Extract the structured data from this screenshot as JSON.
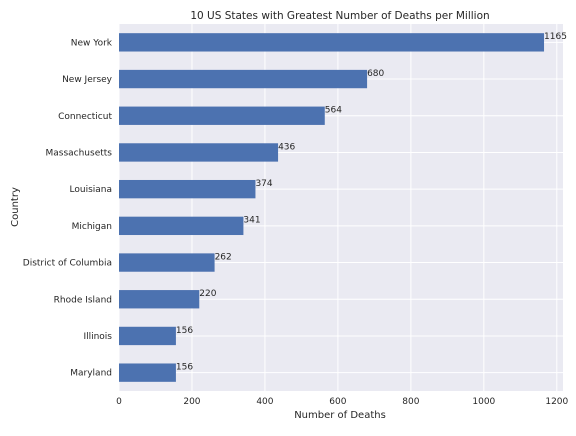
{
  "chart_data": {
    "type": "bar",
    "orientation": "horizontal",
    "title": "10 US States with Greatest Number of Deaths per Million",
    "xlabel": "Number of Deaths",
    "ylabel": "Country",
    "categories": [
      "New York",
      "New Jersey",
      "Connecticut",
      "Massachusetts",
      "Louisiana",
      "Michigan",
      "District of Columbia",
      "Rhode Island",
      "Illinois",
      "Maryland"
    ],
    "values": [
      1165,
      680,
      564,
      436,
      374,
      341,
      262,
      220,
      156,
      156
    ],
    "data_labels": [
      "1165",
      "680",
      "564",
      "436",
      "374",
      "341",
      "262",
      "220",
      "156",
      "156"
    ],
    "xlim": [
      0,
      1217
    ],
    "xticks": [
      0,
      200,
      400,
      600,
      800,
      1000,
      1200
    ],
    "xtick_labels": [
      "0",
      "200",
      "400",
      "600",
      "800",
      "1000",
      "1200"
    ],
    "grid": true,
    "legend": "none",
    "colors": {
      "bar": "#4c72b0",
      "plot_background": "#eaeaf2",
      "grid": "#ffffff",
      "text": "#262626"
    }
  }
}
